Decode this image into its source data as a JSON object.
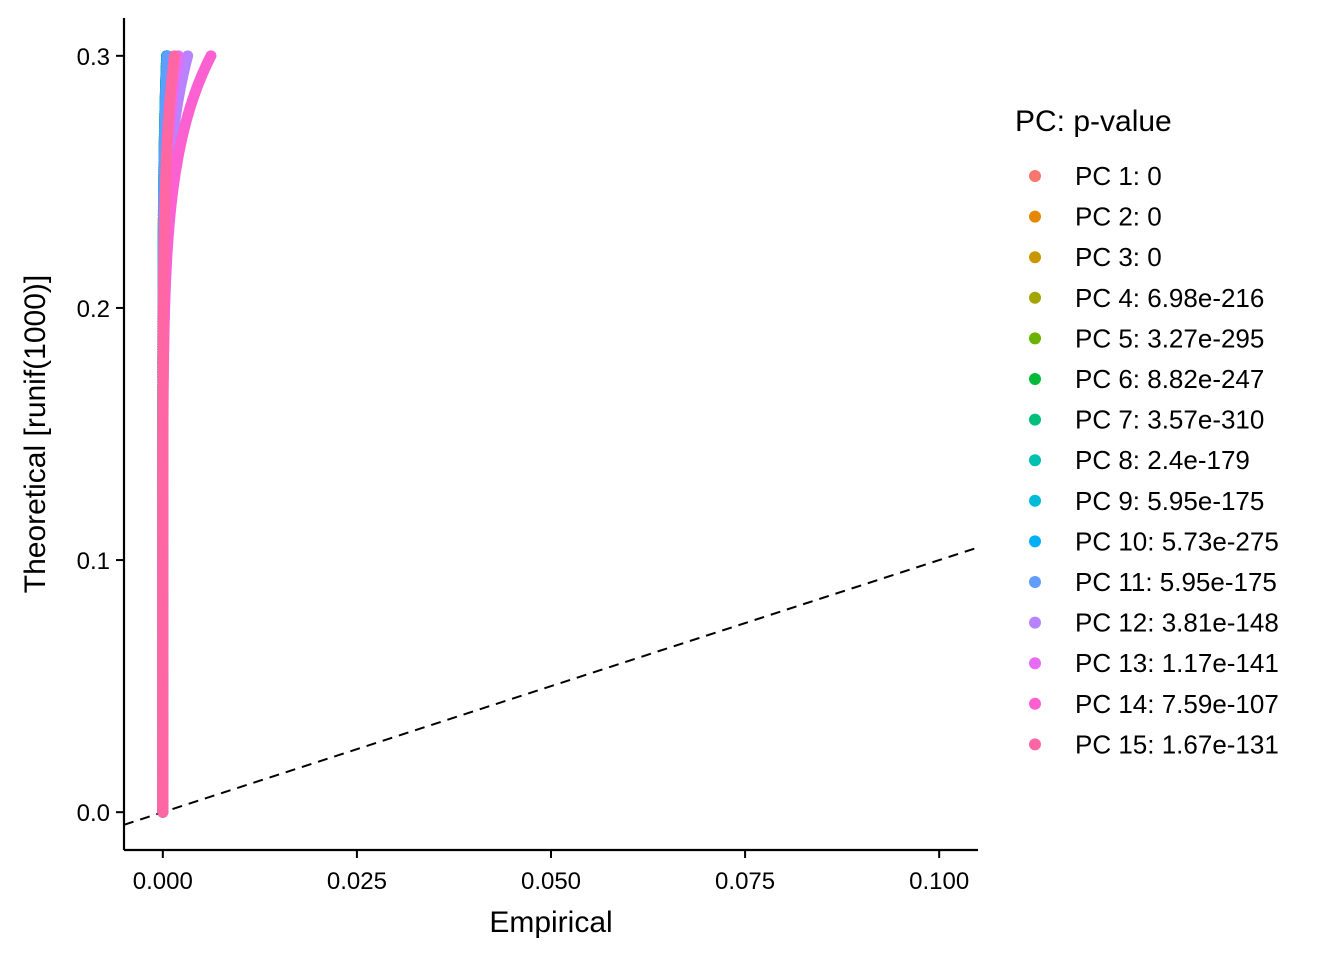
{
  "chart_data": {
    "type": "scatter",
    "xlabel": "Empirical",
    "ylabel": "Theoretical [runif(1000)]",
    "xlim": [
      -0.005,
      0.105
    ],
    "ylim": [
      -0.015,
      0.315
    ],
    "x_ticks": [
      0.0,
      0.025,
      0.05,
      0.075,
      0.1
    ],
    "x_tick_labels": [
      "0.000",
      "0.025",
      "0.050",
      "0.075",
      "0.100"
    ],
    "y_ticks": [
      0.0,
      0.1,
      0.2,
      0.3
    ],
    "y_tick_labels": [
      "0.0",
      "0.1",
      "0.2",
      "0.3"
    ],
    "reference_line": {
      "slope": 1,
      "intercept": 0,
      "style": "dashed"
    },
    "grid": false,
    "legend": {
      "title": "PC: p-value",
      "placement": "right"
    },
    "series": [
      {
        "name": "PC 1: 0",
        "color": "#F8766D",
        "max_x": 0.0005
      },
      {
        "name": "PC 2: 0",
        "color": "#E58700",
        "max_x": 0.0005
      },
      {
        "name": "PC 3: 0",
        "color": "#C99800",
        "max_x": 0.0005
      },
      {
        "name": "PC 4: 6.98e-216",
        "color": "#A3A500",
        "max_x": 0.0006
      },
      {
        "name": "PC 5: 3.27e-295",
        "color": "#6BB100",
        "max_x": 0.0005
      },
      {
        "name": "PC 6: 8.82e-247",
        "color": "#00BA38",
        "max_x": 0.0005
      },
      {
        "name": "PC 7: 3.57e-310",
        "color": "#00BF7D",
        "max_x": 0.0005
      },
      {
        "name": "PC 8: 2.4e-179",
        "color": "#00C0AF",
        "max_x": 0.0006
      },
      {
        "name": "PC 9: 5.95e-175",
        "color": "#00BCD8",
        "max_x": 0.0006
      },
      {
        "name": "PC 10: 5.73e-275",
        "color": "#00B0F6",
        "max_x": 0.0005
      },
      {
        "name": "PC 11: 5.95e-175",
        "color": "#619CFF",
        "max_x": 0.0006
      },
      {
        "name": "PC 12: 3.81e-148",
        "color": "#B983FF",
        "max_x": 0.0032
      },
      {
        "name": "PC 13: 1.17e-141",
        "color": "#E76BF3",
        "max_x": 0.002
      },
      {
        "name": "PC 14: 7.59e-107",
        "color": "#FD61D1",
        "max_x": 0.0062
      },
      {
        "name": "PC 15: 1.67e-131",
        "color": "#FF67A4",
        "max_x": 0.0015
      }
    ]
  }
}
